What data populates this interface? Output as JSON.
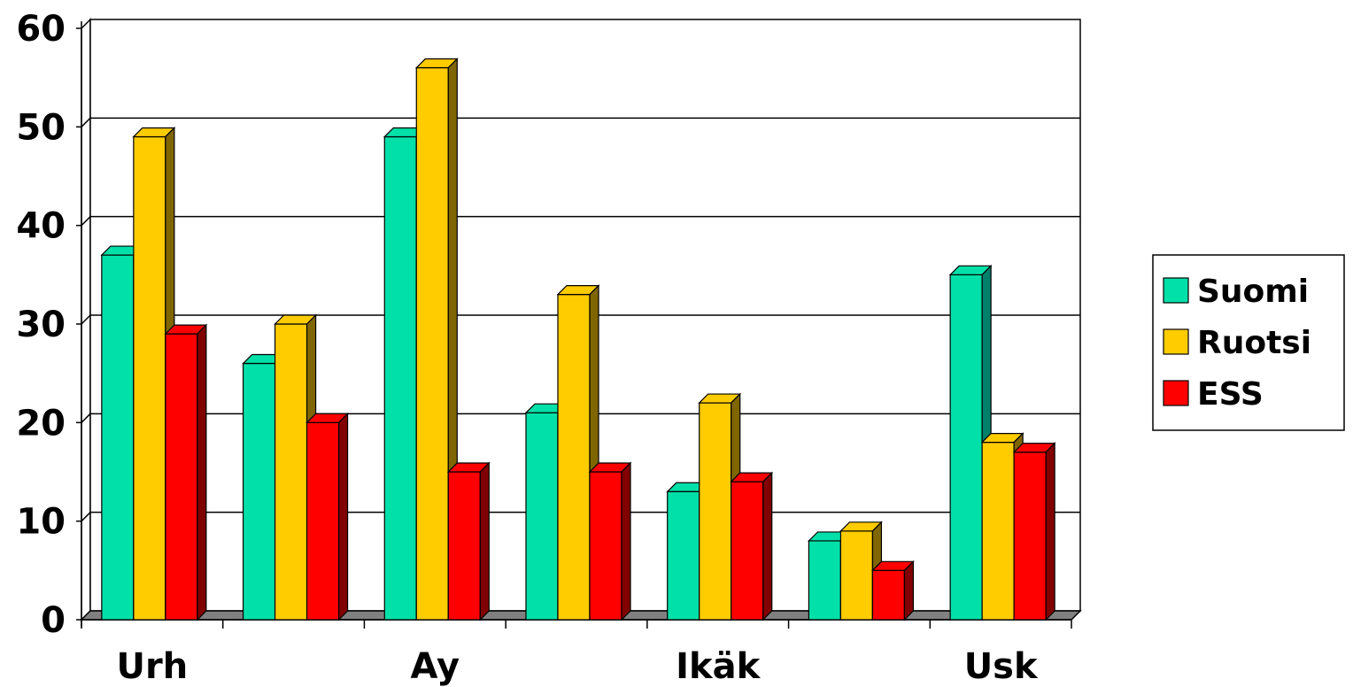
{
  "chart_data": {
    "type": "bar",
    "categories": [
      "Urh",
      "",
      "Ay",
      "",
      "Ikäk",
      "",
      "Usk"
    ],
    "series": [
      {
        "name": "Suomi",
        "values": [
          37,
          26,
          49,
          21,
          13,
          8,
          35
        ],
        "color": "#00E0A8",
        "side_color": "#00806A"
      },
      {
        "name": "Ruotsi",
        "values": [
          49,
          30,
          56,
          33,
          22,
          9,
          18
        ],
        "color": "#FFCC00",
        "side_color": "#806600"
      },
      {
        "name": "ESS",
        "values": [
          29,
          20,
          15,
          15,
          14,
          5,
          17
        ],
        "color": "#FF0000",
        "side_color": "#800000"
      }
    ],
    "ylim": [
      0,
      60
    ],
    "yticks": [
      "0",
      "10",
      "20",
      "30",
      "40",
      "50",
      "60"
    ],
    "grid": true,
    "legend": "right",
    "title": "",
    "xlabel": "",
    "ylabel": ""
  }
}
